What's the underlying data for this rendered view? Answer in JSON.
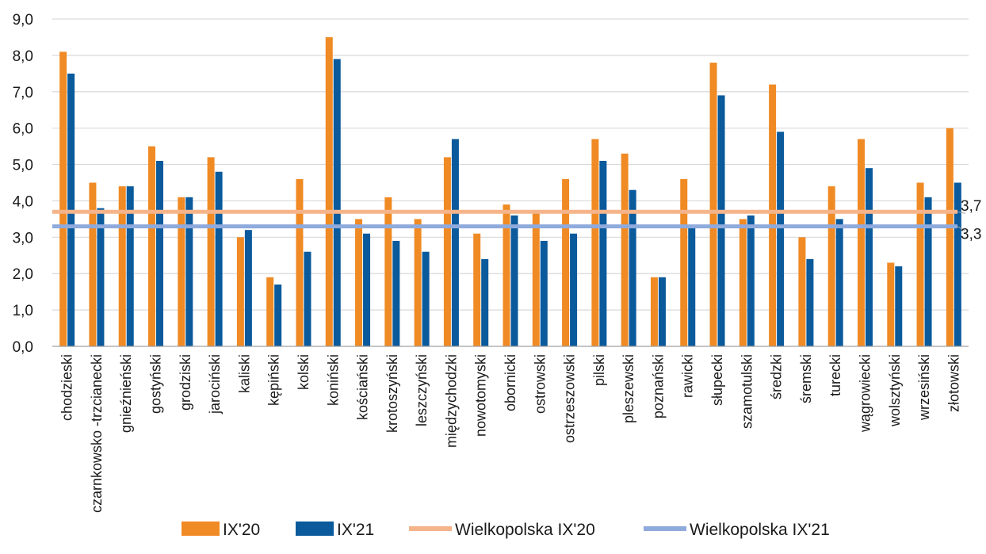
{
  "chart_data": {
    "type": "bar",
    "title": "",
    "xlabel": "",
    "ylabel": "",
    "ylim": [
      0,
      9
    ],
    "y_ticks": [
      "0,0",
      "1,0",
      "2,0",
      "3,0",
      "4,0",
      "5,0",
      "6,0",
      "7,0",
      "8,0",
      "9,0"
    ],
    "grid": true,
    "legend_position": "bottom",
    "categories": [
      "chodzieski",
      "czarnkowsko -trzcianecki",
      "gnieźnieński",
      "gostyński",
      "grodziski",
      "jarociński",
      "kaliski",
      "kępiński",
      "kolski",
      "koniński",
      "kościański",
      "krotoszyński",
      "leszczyński",
      "międzychodzki",
      "nowotomyski",
      "obornicki",
      "ostrowski",
      "ostrzeszowski",
      "pilski",
      "pleszewski",
      "poznański",
      "rawicki",
      "słupecki",
      "szamotulski",
      "średzki",
      "śremski",
      "turecki",
      "wągrowiecki",
      "wolsztyński",
      "wrzesiński",
      "złotowski"
    ],
    "series": [
      {
        "name": "IX'20",
        "color": "#f08a24",
        "values": [
          8.1,
          4.5,
          4.4,
          5.5,
          4.1,
          5.2,
          3.0,
          1.9,
          4.6,
          8.5,
          3.5,
          4.1,
          3.5,
          5.2,
          3.1,
          3.9,
          3.7,
          4.6,
          5.7,
          5.3,
          1.9,
          4.6,
          7.8,
          3.5,
          7.2,
          3.0,
          4.4,
          5.7,
          2.3,
          4.5,
          6.0
        ]
      },
      {
        "name": "IX'21",
        "color": "#0a5a9c",
        "values": [
          7.5,
          3.8,
          4.4,
          5.1,
          4.1,
          4.8,
          3.2,
          1.7,
          2.6,
          7.9,
          3.1,
          2.9,
          2.6,
          5.7,
          2.4,
          3.6,
          2.9,
          3.1,
          5.1,
          4.3,
          1.9,
          3.3,
          6.9,
          3.6,
          5.9,
          2.4,
          3.5,
          4.9,
          2.2,
          4.1,
          4.5
        ]
      }
    ],
    "reference_lines": [
      {
        "name": "Wielkopolska IX'20",
        "value": 3.7,
        "label": "3,7",
        "color": "#f5b48a"
      },
      {
        "name": "Wielkopolska IX'21",
        "value": 3.3,
        "label": "3,3",
        "color": "#8faadc"
      }
    ]
  }
}
